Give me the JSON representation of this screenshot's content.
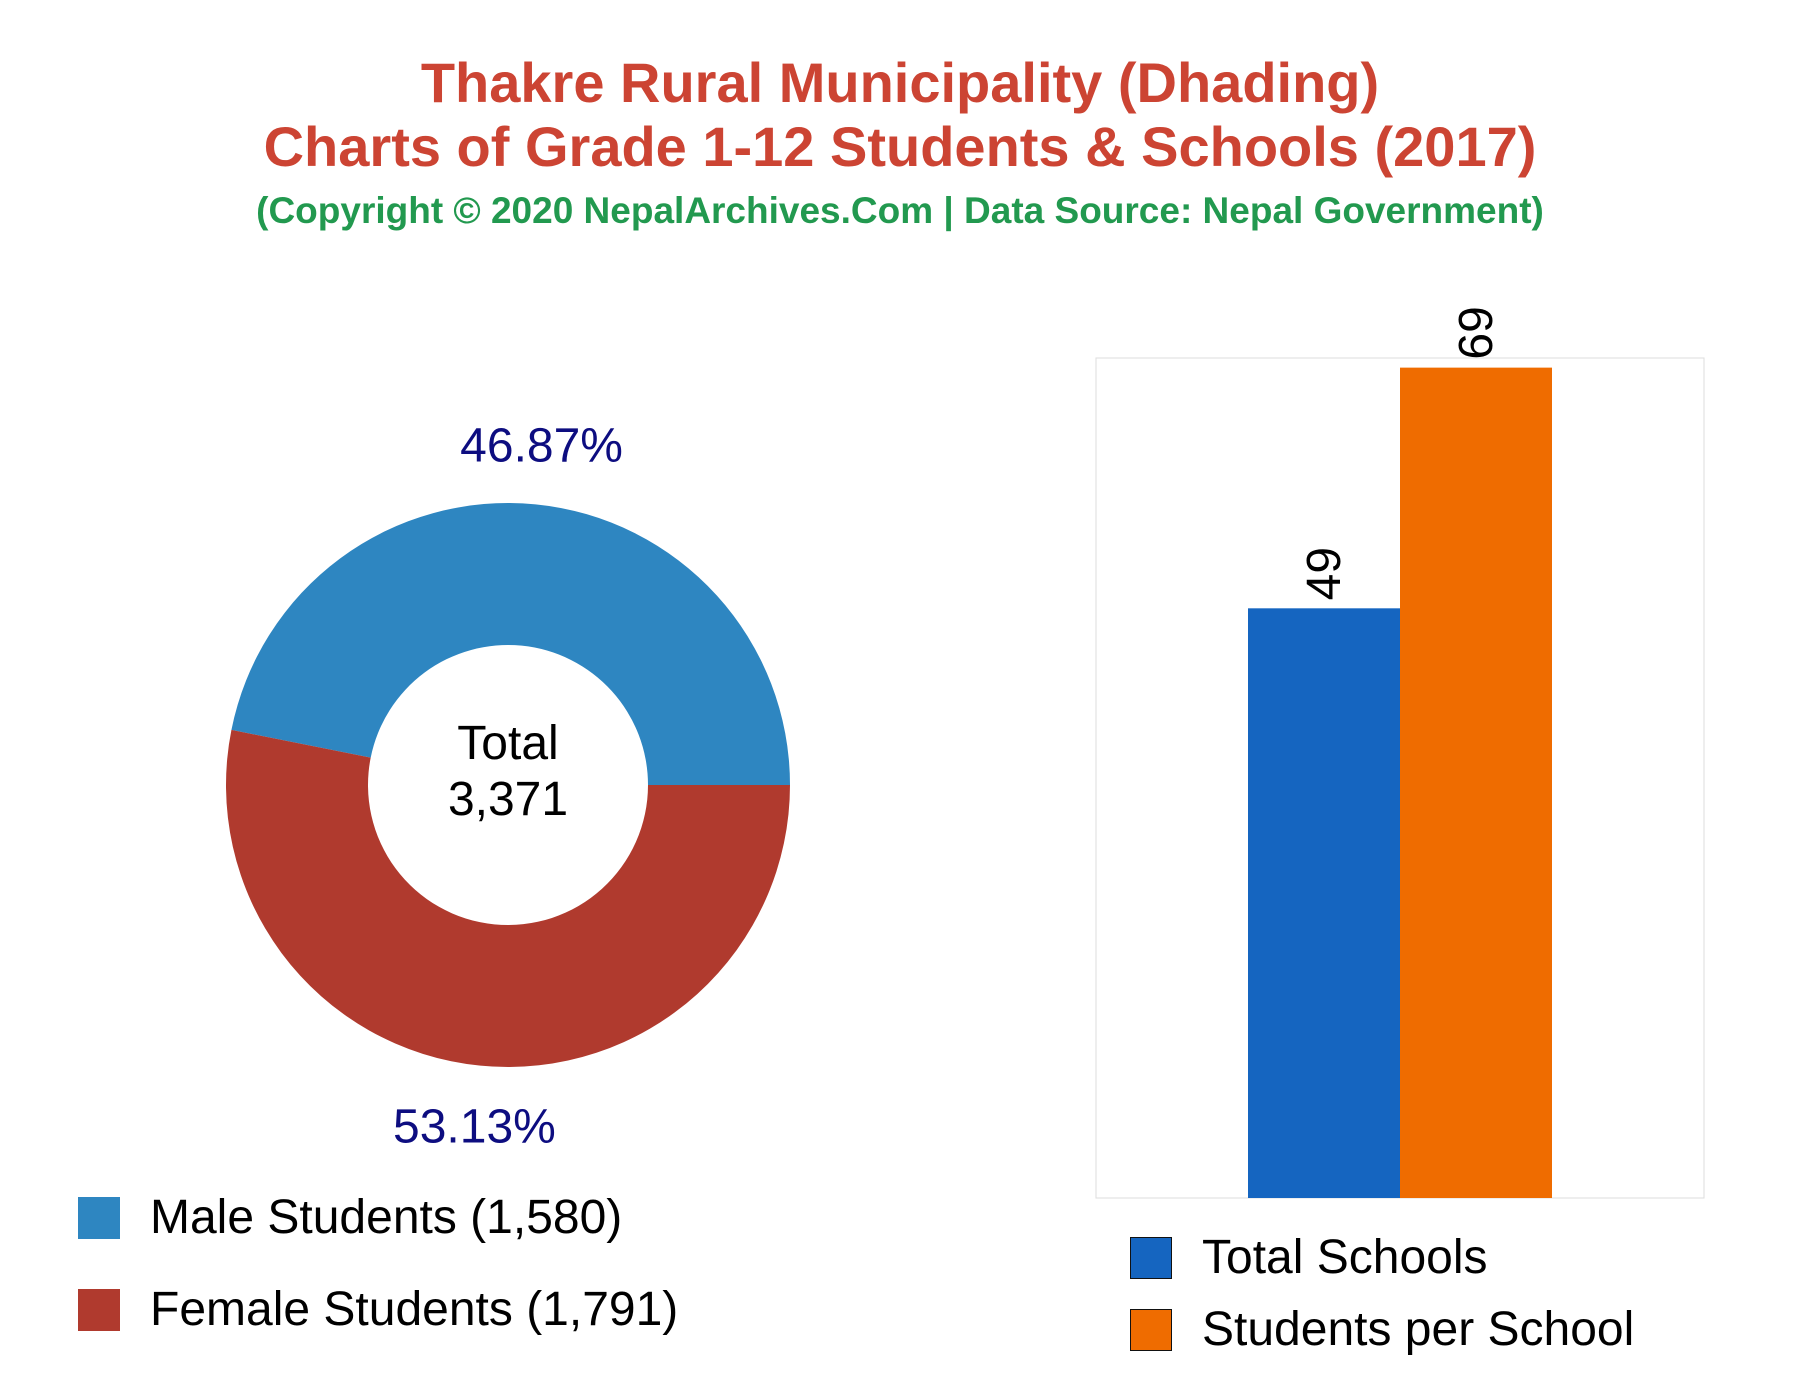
{
  "header": {
    "title_line1": "Thakre Rural Municipality (Dhading)",
    "title_line2": "Charts of Grade 1-12 Students & Schools (2017)",
    "subtitle": "(Copyright © 2020 NepalArchives.Com | Data Source: Nepal Government)"
  },
  "colors": {
    "title": "#cc4433",
    "subtitle": "#22994f",
    "male": "#2e86c1",
    "female": "#b03a2e",
    "total_schools": "#1565c0",
    "students_per_school": "#ef6c00",
    "percent_label": "#0d0d80"
  },
  "chart_data": [
    {
      "type": "pie",
      "variant": "donut",
      "center_label": "Total",
      "center_value": "3,371",
      "slices": [
        {
          "label": "Male Students (1,580)",
          "value": 1580,
          "percent_label": "46.87%",
          "color": "#2e86c1"
        },
        {
          "label": "Female Students (1,791)",
          "value": 1791,
          "percent_label": "53.13%",
          "color": "#b03a2e"
        }
      ],
      "legend_placement": "bottom-left"
    },
    {
      "type": "bar",
      "categories": [
        "Total Schools",
        "Students per School"
      ],
      "values": [
        49,
        69
      ],
      "value_labels": [
        "49",
        "69"
      ],
      "colors": [
        "#1565c0",
        "#ef6c00"
      ],
      "ylim": [
        0,
        69.8
      ],
      "grid": false,
      "legend_placement": "bottom"
    }
  ]
}
